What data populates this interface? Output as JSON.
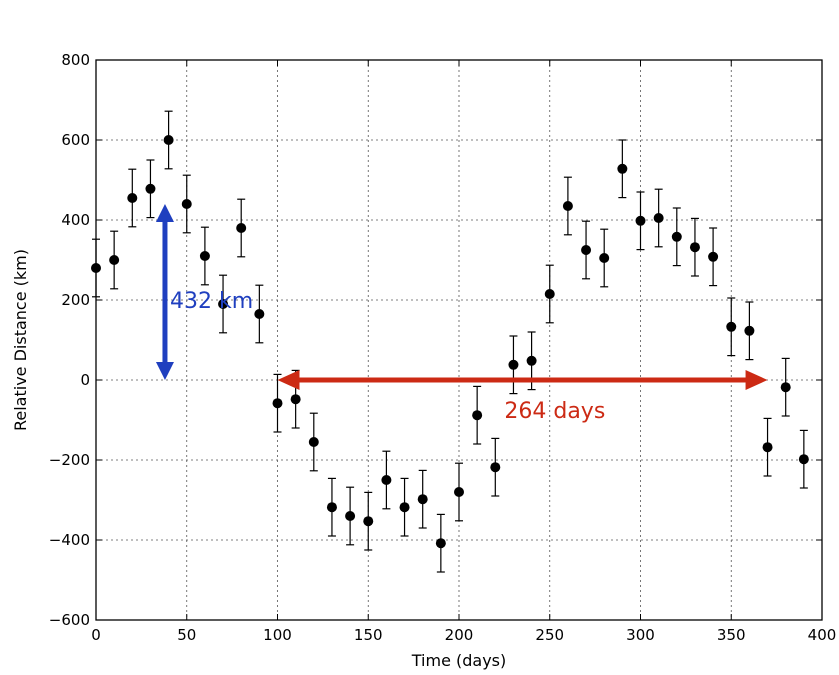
{
  "chart_data": {
    "type": "scatter",
    "title": "",
    "xlabel": "Time (days)",
    "ylabel": "Relative Distance (km)",
    "xlim": [
      0,
      400
    ],
    "ylim": [
      -600,
      800
    ],
    "x_ticks": [
      "0",
      "50",
      "100",
      "150",
      "200",
      "250",
      "300",
      "350",
      "400"
    ],
    "y_ticks": [
      "800",
      "600",
      "400",
      "200",
      "0",
      "−200",
      "−400",
      "−600"
    ],
    "grid": true,
    "x": [
      0,
      10,
      20,
      30,
      40,
      50,
      60,
      70,
      80,
      90,
      100,
      110,
      120,
      130,
      140,
      150,
      160,
      170,
      180,
      190,
      200,
      210,
      220,
      230,
      240,
      250,
      260,
      270,
      280,
      290,
      300,
      310,
      320,
      330,
      340,
      350,
      360,
      370,
      380,
      390
    ],
    "y": [
      280,
      300,
      455,
      478,
      600,
      440,
      310,
      190,
      380,
      165,
      -58,
      -48,
      -155,
      -318,
      -340,
      -353,
      -250,
      -318,
      -298,
      -408,
      -280,
      -88,
      -218,
      38,
      48,
      215,
      435,
      325,
      305,
      528,
      398,
      405,
      358,
      332,
      308,
      133,
      123,
      -168,
      -18,
      -198
    ],
    "error": [
      72,
      72,
      72,
      72,
      72,
      72,
      72,
      72,
      72,
      72,
      72,
      72,
      72,
      72,
      72,
      72,
      72,
      72,
      72,
      72,
      72,
      72,
      72,
      72,
      72,
      72,
      72,
      72,
      72,
      72,
      72,
      72,
      72,
      72,
      72,
      72,
      72,
      72,
      72,
      72
    ],
    "annotations": [
      {
        "text": "432 km",
        "color": "#1f3fbf",
        "arrow": "vertical",
        "x": 38,
        "y_from": 0,
        "y_to": 440
      },
      {
        "text": "264 days",
        "color": "#cc2a14",
        "arrow": "horizontal",
        "y": 0,
        "x_from": 100,
        "x_to": 370
      }
    ]
  }
}
